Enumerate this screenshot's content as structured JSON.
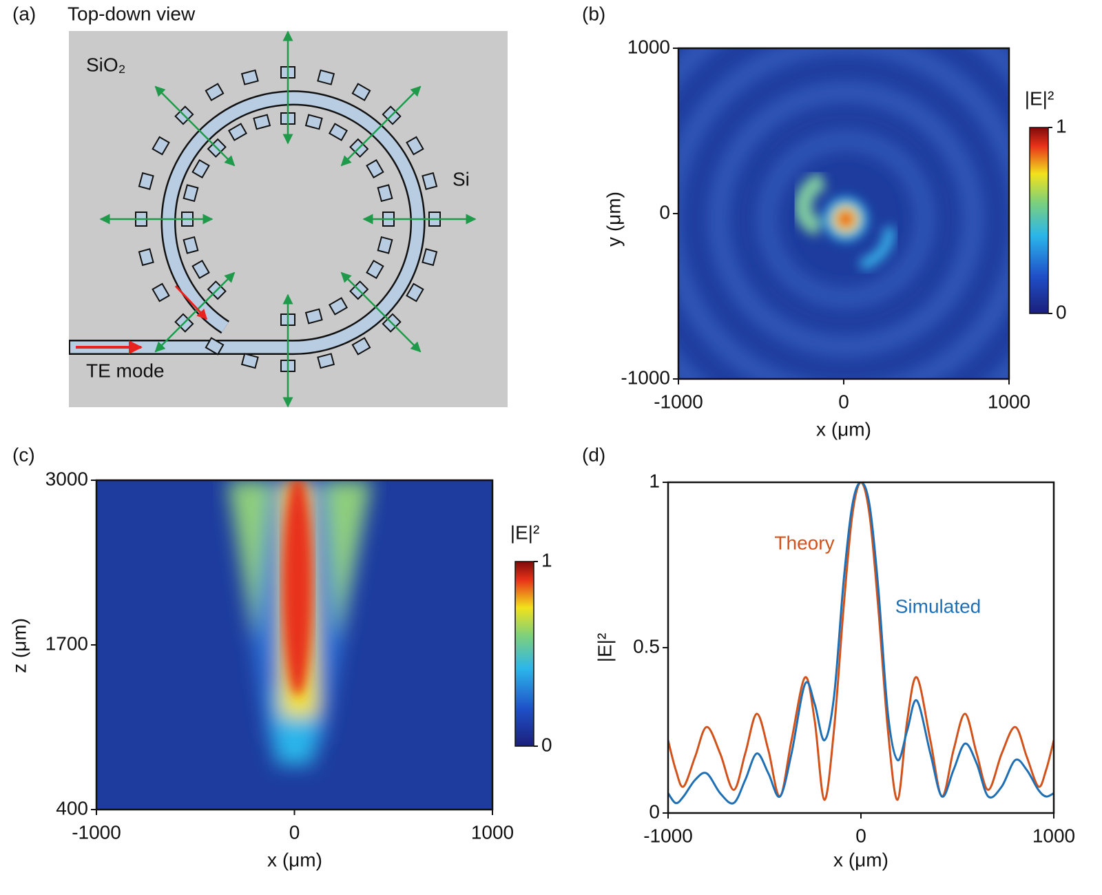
{
  "panel_a": {
    "panel_label": "(a)",
    "title": "Top-down view",
    "cladding_label": "SiO₂",
    "pillar_label": "Si",
    "input_label": "TE mode"
  },
  "chart_data": [
    {
      "type": "heatmap",
      "panel_label": "(b)",
      "x_label": "x (μm)",
      "y_label": "y (μm)",
      "xlim": [
        -1000,
        1000
      ],
      "xticks": [
        -1000,
        0,
        1000
      ],
      "ylim": [
        -1000,
        1000
      ],
      "yticks": [
        -1000,
        0,
        1000
      ],
      "colorbar": {
        "label": "|E|²",
        "ticks": [
          0,
          1
        ]
      }
    },
    {
      "type": "heatmap",
      "panel_label": "(c)",
      "x_label": "x (μm)",
      "y_label": "z (μm)",
      "xlim": [
        -1000,
        1000
      ],
      "xticks": [
        -1000,
        0,
        1000
      ],
      "ylim": [
        400,
        3000
      ],
      "yticks": [
        400,
        1700,
        3000
      ],
      "colorbar": {
        "label": "|E|²",
        "ticks": [
          0,
          1
        ]
      }
    },
    {
      "type": "line",
      "panel_label": "(d)",
      "x_label": "x (μm)",
      "y_label": "|E|²",
      "xlim": [
        -1000,
        1000
      ],
      "xticks": [
        -1000,
        0,
        1000
      ],
      "ylim": [
        0,
        1
      ],
      "yticks": [
        0,
        0.5,
        1
      ],
      "x": [
        -1000,
        -960,
        -920,
        -860,
        -800,
        -730,
        -660,
        -600,
        -540,
        -480,
        -420,
        -360,
        -290,
        -240,
        -190,
        -140,
        -90,
        -45,
        0,
        45,
        90,
        140,
        190,
        240,
        290,
        360,
        420,
        480,
        540,
        600,
        660,
        730,
        800,
        860,
        920,
        960,
        1000
      ],
      "series": [
        {
          "name": "Theory",
          "color": "#d2521c",
          "values": [
            0.22,
            0.13,
            0.08,
            0.17,
            0.26,
            0.18,
            0.07,
            0.18,
            0.3,
            0.19,
            0.05,
            0.22,
            0.41,
            0.28,
            0.04,
            0.25,
            0.62,
            0.9,
            1,
            0.9,
            0.62,
            0.25,
            0.04,
            0.28,
            0.41,
            0.22,
            0.05,
            0.19,
            0.3,
            0.18,
            0.07,
            0.18,
            0.26,
            0.17,
            0.08,
            0.13,
            0.22
          ]
        },
        {
          "name": "Simulated",
          "color": "#1f6fb5",
          "values": [
            0.06,
            0.03,
            0.05,
            0.1,
            0.12,
            0.06,
            0.03,
            0.1,
            0.18,
            0.12,
            0.05,
            0.18,
            0.39,
            0.33,
            0.22,
            0.35,
            0.7,
            0.93,
            1,
            0.93,
            0.68,
            0.3,
            0.16,
            0.25,
            0.34,
            0.18,
            0.05,
            0.13,
            0.21,
            0.15,
            0.05,
            0.08,
            0.16,
            0.13,
            0.07,
            0.05,
            0.06
          ]
        }
      ]
    }
  ]
}
